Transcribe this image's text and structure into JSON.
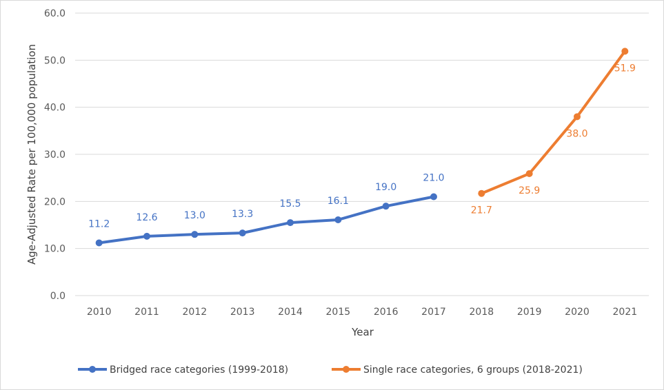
{
  "chart_data": {
    "type": "line",
    "title": "",
    "xlabel": "Year",
    "ylabel": "Age-Adjusted Rate per 100,000 population",
    "ylim": [
      0,
      60
    ],
    "yticks": [
      "0.0",
      "10.0",
      "20.0",
      "30.0",
      "40.0",
      "50.0",
      "60.0"
    ],
    "categories": [
      "2010",
      "2011",
      "2012",
      "2013",
      "2014",
      "2015",
      "2016",
      "2017",
      "2018",
      "2019",
      "2020",
      "2021"
    ],
    "grid": true,
    "legend_position": "bottom",
    "series": [
      {
        "name": "Bridged race categories (1999-2018)",
        "color": "#4472c4",
        "x": [
          "2010",
          "2011",
          "2012",
          "2013",
          "2014",
          "2015",
          "2016",
          "2017"
        ],
        "values": [
          11.2,
          12.6,
          13.0,
          13.3,
          15.5,
          16.1,
          19.0,
          21.0
        ],
        "labels": [
          "11.2",
          "12.6",
          "13.0",
          "13.3",
          "15.5",
          "16.1",
          "19.0",
          "21.0"
        ],
        "label_placement": [
          "above",
          "above",
          "above",
          "above",
          "above",
          "above",
          "above",
          "above"
        ]
      },
      {
        "name": "Single race categories, 6 groups (2018-2021)",
        "color": "#ed7d31",
        "x": [
          "2018",
          "2019",
          "2020",
          "2021"
        ],
        "values": [
          21.7,
          25.9,
          38.0,
          51.9
        ],
        "labels": [
          "21.7",
          "25.9",
          "38.0",
          "51.9"
        ],
        "label_placement": [
          "below",
          "below",
          "below",
          "below"
        ]
      }
    ]
  }
}
